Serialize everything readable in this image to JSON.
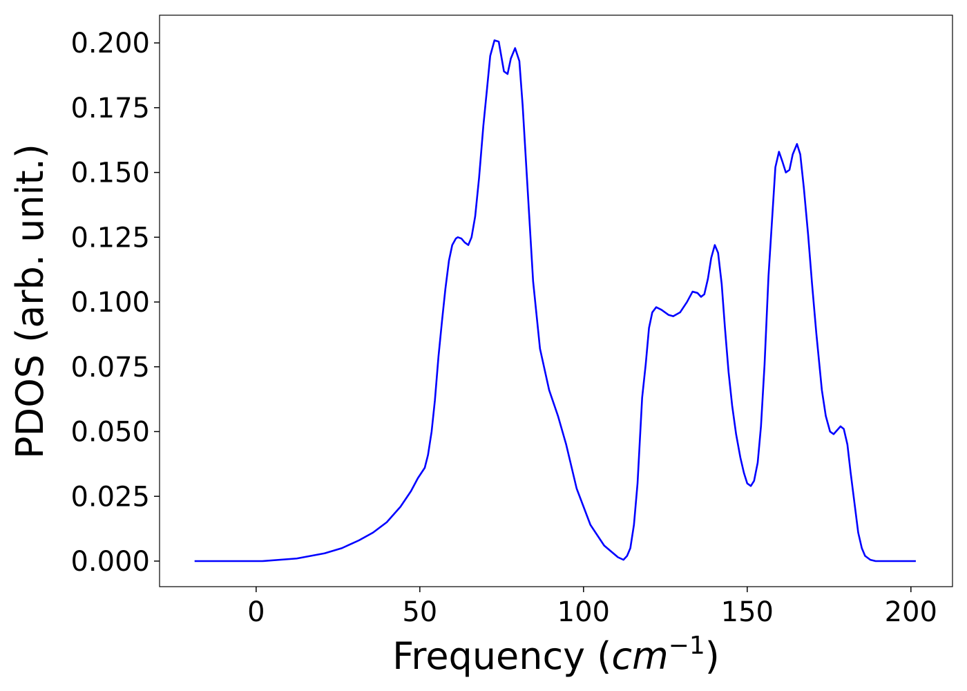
{
  "chart_data": {
    "type": "line",
    "xlabel_parts": [
      "Frequency (",
      "cm",
      "−1",
      ")"
    ],
    "ylabel": "PDOS (arb. unit.)",
    "xlim": [
      -29.5,
      212.7
    ],
    "ylim": [
      -0.00987,
      0.2107
    ],
    "xticks": [
      0,
      50,
      100,
      150,
      200
    ],
    "yticks": [
      {
        "value": 0,
        "label": "0.000"
      },
      {
        "value": 0.025,
        "label": "0.025"
      },
      {
        "value": 0.05,
        "label": "0.050"
      },
      {
        "value": 0.075,
        "label": "0.075"
      },
      {
        "value": 0.1,
        "label": "0.100"
      },
      {
        "value": 0.125,
        "label": "0.125"
      },
      {
        "value": 0.15,
        "label": "0.150"
      },
      {
        "value": 0.175,
        "label": "0.175"
      },
      {
        "value": 0.2,
        "label": "0.200"
      }
    ],
    "grid": false,
    "x": [
      -18.8,
      1.9,
      12.4,
      20.9,
      26.2,
      31.4,
      35.7,
      39.9,
      44.1,
      47.3,
      49.4,
      51.5,
      52.5,
      53.6,
      54.6,
      55.7,
      56.8,
      57.8,
      58.9,
      59.9,
      61,
      61.6,
      62.7,
      63.7,
      64.8,
      65.8,
      66.9,
      68.1,
      69.4,
      70.5,
      71.5,
      72.8,
      74.1,
      75.7,
      76.8,
      77.8,
      79.1,
      80.4,
      81.4,
      84.6,
      86.7,
      89.5,
      92.2,
      94.7,
      97.9,
      102.1,
      106.3,
      110.5,
      112.2,
      113.3,
      114.3,
      115.4,
      116.5,
      117.9,
      119,
      120,
      121,
      122.2,
      123.8,
      126,
      127.4,
      129.5,
      131.6,
      133.3,
      134.8,
      135.9,
      136.9,
      138,
      139,
      140.1,
      141.1,
      142.2,
      143.2,
      144.3,
      145.4,
      146.6,
      147.9,
      149,
      150,
      151.1,
      152.1,
      153.2,
      154.2,
      155.3,
      156.5,
      157.6,
      158.6,
      159.7,
      160.8,
      161.8,
      162.9,
      163.9,
      165.2,
      166.2,
      167.3,
      168.6,
      169.8,
      171.1,
      172.8,
      174,
      175.3,
      176.4,
      178.5,
      179.5,
      180.6,
      181.6,
      182.9,
      183.9,
      185,
      186,
      187.6,
      189.2,
      201.5
    ],
    "series": [
      {
        "name": "PDOS",
        "color": "#0000ff",
        "values": [
          0,
          0,
          0.001,
          0.003,
          0.005,
          0.008,
          0.011,
          0.015,
          0.021,
          0.027,
          0.032,
          0.036,
          0.041,
          0.05,
          0.062,
          0.079,
          0.093,
          0.105,
          0.116,
          0.122,
          0.1245,
          0.125,
          0.1245,
          0.123,
          0.122,
          0.125,
          0.133,
          0.148,
          0.168,
          0.182,
          0.195,
          0.201,
          0.2005,
          0.189,
          0.188,
          0.194,
          0.198,
          0.193,
          0.176,
          0.108,
          0.082,
          0.066,
          0.056,
          0.045,
          0.028,
          0.014,
          0.006,
          0.0015,
          0.0005,
          0.002,
          0.005,
          0.014,
          0.03,
          0.063,
          0.076,
          0.09,
          0.096,
          0.098,
          0.097,
          0.095,
          0.0945,
          0.096,
          0.1,
          0.104,
          0.1035,
          0.102,
          0.103,
          0.109,
          0.117,
          0.122,
          0.119,
          0.107,
          0.09,
          0.073,
          0.06,
          0.049,
          0.04,
          0.034,
          0.03,
          0.029,
          0.031,
          0.038,
          0.052,
          0.076,
          0.11,
          0.132,
          0.152,
          0.158,
          0.154,
          0.15,
          0.151,
          0.157,
          0.161,
          0.157,
          0.144,
          0.126,
          0.107,
          0.088,
          0.066,
          0.056,
          0.05,
          0.049,
          0.052,
          0.051,
          0.045,
          0.034,
          0.021,
          0.011,
          0.005,
          0.002,
          0.0005,
          0,
          0
        ]
      }
    ]
  }
}
